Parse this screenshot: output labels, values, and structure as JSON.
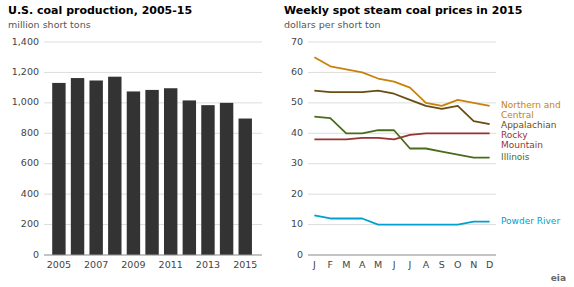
{
  "chart_data": [
    {
      "type": "bar",
      "title": "U.S. coal production, 2005-15",
      "subtitle": "million short tons",
      "x": [
        2005,
        2006,
        2007,
        2008,
        2009,
        2010,
        2011,
        2012,
        2013,
        2014,
        2015
      ],
      "values": [
        1131,
        1163,
        1147,
        1172,
        1075,
        1085,
        1096,
        1016,
        985,
        1000,
        897
      ],
      "color": "#333333",
      "xlim": [
        2004.2,
        2015.9
      ],
      "xticks": [
        2005,
        2007,
        2009,
        2011,
        2013,
        2015
      ],
      "ylim": [
        0,
        1400
      ],
      "yticks": [
        0,
        200,
        400,
        600,
        800,
        {
          "value": 1000,
          "label": "1,000"
        },
        {
          "value": 1200,
          "label": "1,200"
        },
        {
          "value": 1400,
          "label": "1,400"
        }
      ],
      "grid": true
    },
    {
      "type": "line",
      "title": "Weekly spot steam coal prices in 2015",
      "subtitle": "dollars per short ton",
      "categories": [
        "J",
        "F",
        "M",
        "A",
        "M",
        "J",
        "J",
        "A",
        "S",
        "O",
        "N",
        "D"
      ],
      "series": [
        {
          "color": "#c8820a",
          "values": [
            65,
            62,
            61,
            60,
            58,
            57,
            55,
            50,
            49,
            51,
            50,
            49
          ]
        },
        {
          "color": "#6b4c11",
          "values": [
            54,
            53.5,
            53.5,
            53.5,
            54,
            53,
            51,
            49,
            48,
            49,
            44,
            43
          ]
        },
        {
          "color": "#993333",
          "values": [
            38,
            38,
            38,
            38.5,
            38.5,
            38,
            39.5,
            40,
            40,
            40,
            40,
            40
          ]
        },
        {
          "color": "#4a6b1a",
          "values": [
            45.5,
            45,
            40,
            40,
            41,
            41,
            35,
            35,
            34,
            33,
            32,
            32
          ]
        },
        {
          "color": "#00a0d0",
          "values": [
            13,
            12,
            12,
            12,
            10,
            10,
            10,
            10,
            10,
            10,
            11,
            11
          ]
        }
      ],
      "annotations": [
        {
          "text": "Northern and",
          "color": "#c8820a"
        },
        {
          "text": "Central",
          "color": "#c8820a"
        },
        {
          "text": "Appalachian",
          "color": "#6b4c11"
        },
        {
          "text": "Rocky",
          "color": "#993333"
        },
        {
          "text": "Mountain",
          "color": "#993333"
        },
        {
          "text": "Illinois",
          "color": "#4a6b1a"
        },
        {
          "text": "Powder River",
          "color": "#00a0d0"
        },
        {
          "text": "eia",
          "color": "#666666"
        }
      ],
      "ylim": [
        0,
        70
      ],
      "yticks": [
        0,
        10,
        20,
        30,
        40,
        50,
        60,
        70
      ],
      "grid": true
    }
  ]
}
